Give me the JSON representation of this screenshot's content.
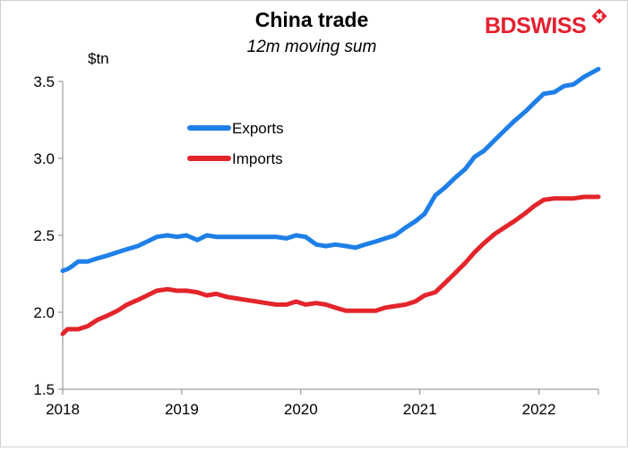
{
  "brand": {
    "logo_text_bd": "BD",
    "logo_text_swiss": "SWISS",
    "logo_color": "#e5202e"
  },
  "chart_data": {
    "type": "line",
    "title": "China trade",
    "subtitle": "12m moving sum",
    "ylabel": "$tn",
    "xlabel": "",
    "xlim": [
      2018.0,
      2022.5
    ],
    "ylim": [
      1.5,
      3.5
    ],
    "y_ticks": [
      1.5,
      2.0,
      2.5,
      3.0,
      3.5
    ],
    "x_ticks": [
      2018,
      2019,
      2020,
      2021,
      2022
    ],
    "x_tick_labels": [
      "2018",
      "2019",
      "2020",
      "2021",
      "2022"
    ],
    "y_tick_labels": [
      "1.5",
      "2.0",
      "2.5",
      "3.0",
      "3.5"
    ],
    "grid": false,
    "legend_position": "upper-left-inside",
    "series": [
      {
        "name": "Exports",
        "color": "#1f7fe8",
        "points": [
          [
            2018.0,
            2.27
          ],
          [
            2018.04,
            2.28
          ],
          [
            2018.08,
            2.3
          ],
          [
            2018.13,
            2.33
          ],
          [
            2018.21,
            2.33
          ],
          [
            2018.29,
            2.35
          ],
          [
            2018.38,
            2.37
          ],
          [
            2018.46,
            2.39
          ],
          [
            2018.54,
            2.41
          ],
          [
            2018.63,
            2.43
          ],
          [
            2018.71,
            2.46
          ],
          [
            2018.79,
            2.49
          ],
          [
            2018.88,
            2.5
          ],
          [
            2018.96,
            2.49
          ],
          [
            2019.04,
            2.5
          ],
          [
            2019.13,
            2.47
          ],
          [
            2019.21,
            2.5
          ],
          [
            2019.29,
            2.49
          ],
          [
            2019.38,
            2.49
          ],
          [
            2019.46,
            2.49
          ],
          [
            2019.54,
            2.49
          ],
          [
            2019.63,
            2.49
          ],
          [
            2019.71,
            2.49
          ],
          [
            2019.79,
            2.49
          ],
          [
            2019.88,
            2.48
          ],
          [
            2019.96,
            2.5
          ],
          [
            2020.04,
            2.49
          ],
          [
            2020.13,
            2.44
          ],
          [
            2020.21,
            2.43
          ],
          [
            2020.29,
            2.44
          ],
          [
            2020.38,
            2.43
          ],
          [
            2020.46,
            2.42
          ],
          [
            2020.54,
            2.44
          ],
          [
            2020.63,
            2.46
          ],
          [
            2020.71,
            2.48
          ],
          [
            2020.79,
            2.5
          ],
          [
            2020.88,
            2.55
          ],
          [
            2020.96,
            2.59
          ],
          [
            2021.04,
            2.64
          ],
          [
            2021.13,
            2.76
          ],
          [
            2021.21,
            2.81
          ],
          [
            2021.29,
            2.87
          ],
          [
            2021.38,
            2.93
          ],
          [
            2021.46,
            3.01
          ],
          [
            2021.54,
            3.05
          ],
          [
            2021.63,
            3.12
          ],
          [
            2021.71,
            3.18
          ],
          [
            2021.79,
            3.24
          ],
          [
            2021.88,
            3.3
          ],
          [
            2021.96,
            3.36
          ],
          [
            2022.04,
            3.42
          ],
          [
            2022.13,
            3.43
          ],
          [
            2022.21,
            3.47
          ],
          [
            2022.29,
            3.48
          ],
          [
            2022.38,
            3.53
          ],
          [
            2022.5,
            3.58
          ]
        ]
      },
      {
        "name": "Imports",
        "color": "#e3242b",
        "points": [
          [
            2018.0,
            1.86
          ],
          [
            2018.04,
            1.89
          ],
          [
            2018.13,
            1.89
          ],
          [
            2018.21,
            1.91
          ],
          [
            2018.29,
            1.95
          ],
          [
            2018.38,
            1.98
          ],
          [
            2018.46,
            2.01
          ],
          [
            2018.54,
            2.05
          ],
          [
            2018.63,
            2.08
          ],
          [
            2018.71,
            2.11
          ],
          [
            2018.79,
            2.14
          ],
          [
            2018.88,
            2.15
          ],
          [
            2018.96,
            2.14
          ],
          [
            2019.04,
            2.14
          ],
          [
            2019.13,
            2.13
          ],
          [
            2019.21,
            2.11
          ],
          [
            2019.29,
            2.12
          ],
          [
            2019.38,
            2.1
          ],
          [
            2019.46,
            2.09
          ],
          [
            2019.54,
            2.08
          ],
          [
            2019.63,
            2.07
          ],
          [
            2019.71,
            2.06
          ],
          [
            2019.79,
            2.05
          ],
          [
            2019.88,
            2.05
          ],
          [
            2019.96,
            2.07
          ],
          [
            2020.04,
            2.05
          ],
          [
            2020.13,
            2.06
          ],
          [
            2020.21,
            2.05
          ],
          [
            2020.29,
            2.03
          ],
          [
            2020.38,
            2.01
          ],
          [
            2020.46,
            2.01
          ],
          [
            2020.54,
            2.01
          ],
          [
            2020.63,
            2.01
          ],
          [
            2020.71,
            2.03
          ],
          [
            2020.79,
            2.04
          ],
          [
            2020.88,
            2.05
          ],
          [
            2020.96,
            2.07
          ],
          [
            2021.04,
            2.11
          ],
          [
            2021.13,
            2.13
          ],
          [
            2021.21,
            2.19
          ],
          [
            2021.29,
            2.25
          ],
          [
            2021.38,
            2.32
          ],
          [
            2021.46,
            2.39
          ],
          [
            2021.54,
            2.45
          ],
          [
            2021.63,
            2.51
          ],
          [
            2021.71,
            2.55
          ],
          [
            2021.79,
            2.59
          ],
          [
            2021.88,
            2.64
          ],
          [
            2021.96,
            2.69
          ],
          [
            2022.04,
            2.73
          ],
          [
            2022.13,
            2.74
          ],
          [
            2022.21,
            2.74
          ],
          [
            2022.29,
            2.74
          ],
          [
            2022.38,
            2.75
          ],
          [
            2022.5,
            2.75
          ]
        ]
      }
    ]
  }
}
